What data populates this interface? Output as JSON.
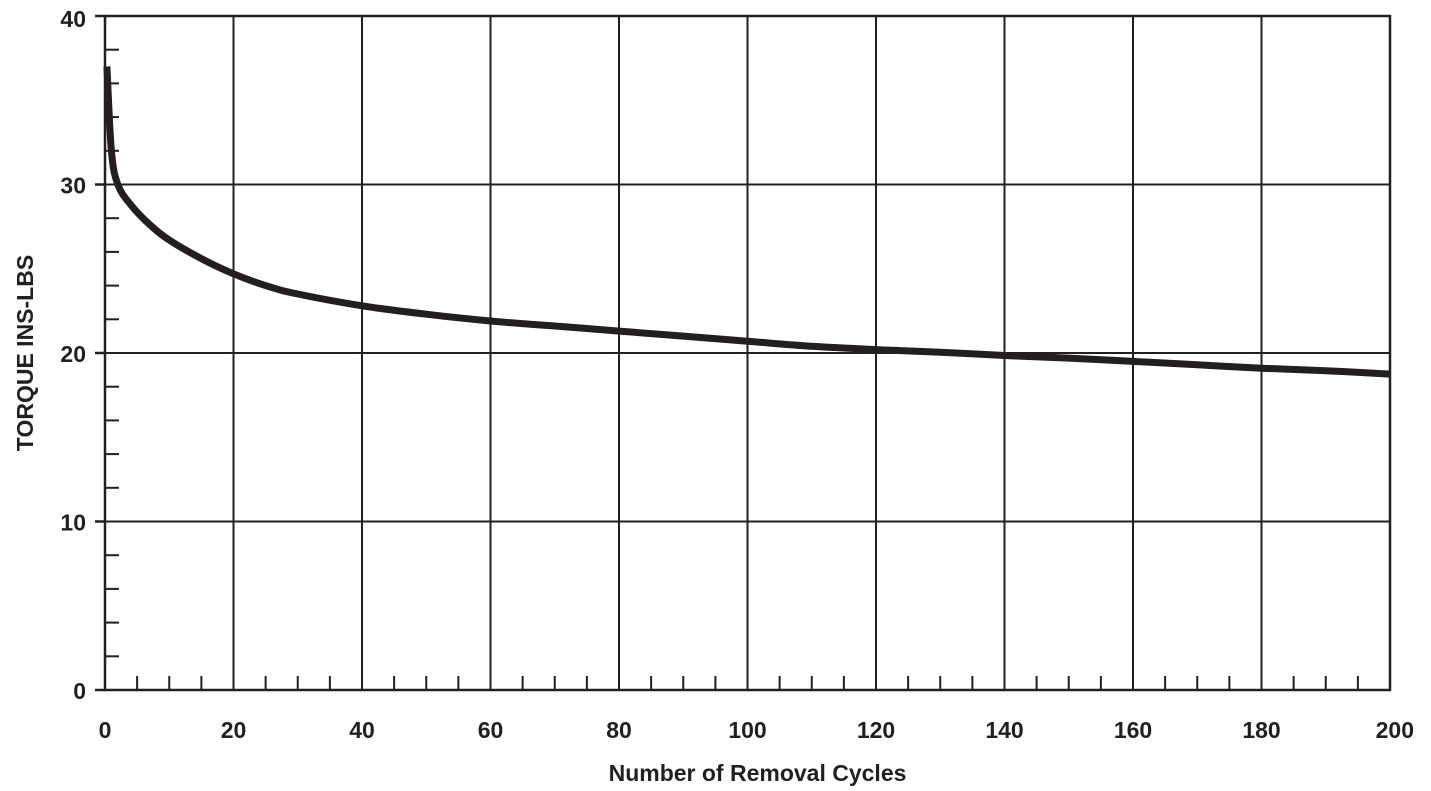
{
  "chart_data": {
    "type": "line",
    "title": "",
    "xlabel": "Number of Removal Cycles",
    "ylabel": "TORQUE INS-LBS",
    "xlim": [
      0,
      200
    ],
    "ylim": [
      0,
      40
    ],
    "x_ticks": [
      0,
      20,
      40,
      60,
      80,
      100,
      120,
      140,
      160,
      180,
      200
    ],
    "y_ticks": [
      0,
      10,
      20,
      30,
      40
    ],
    "x_tick_labels": [
      "0",
      "20",
      "40",
      "60",
      "80",
      "100",
      "120",
      "140",
      "160",
      "180",
      "200"
    ],
    "y_tick_labels": [
      "0",
      "10",
      "20",
      "30",
      "40"
    ],
    "grid": true,
    "legend": "none",
    "line_color": "#231f20",
    "series": [
      {
        "x": [
          0.3,
          1,
          2,
          4,
          7,
          10,
          15,
          20,
          25,
          30,
          40,
          50,
          60,
          70,
          80,
          90,
          100,
          110,
          120,
          130,
          140,
          150,
          160,
          170,
          180,
          190,
          200
        ],
        "y": [
          37.0,
          32.0,
          30.0,
          28.8,
          27.6,
          26.7,
          25.6,
          24.7,
          24.0,
          23.5,
          22.8,
          22.3,
          21.9,
          21.6,
          21.3,
          21.0,
          20.7,
          20.4,
          20.2,
          20.05,
          19.85,
          19.7,
          19.5,
          19.3,
          19.1,
          18.95,
          18.75
        ]
      }
    ]
  }
}
